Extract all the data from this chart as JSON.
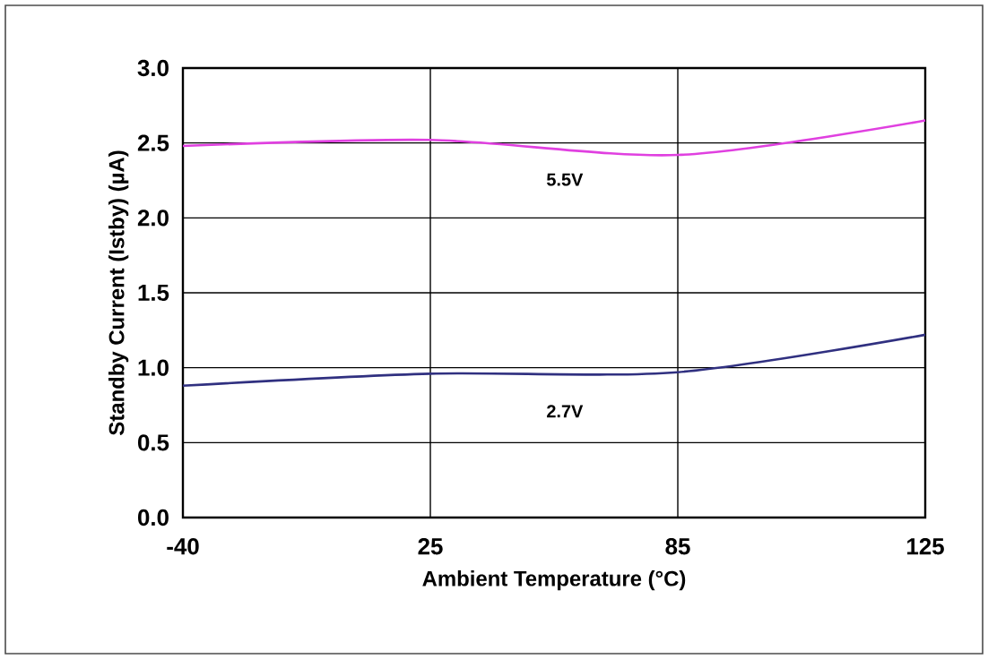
{
  "chart_data": {
    "type": "line",
    "xlabel": "Ambient Temperature (°C)",
    "ylabel": "Standby Current (Istby) (µA)",
    "categories": [
      "-40",
      "25",
      "85",
      "125"
    ],
    "series": [
      {
        "name": "5.5V",
        "color": "#e040e0",
        "values": [
          2.48,
          2.52,
          2.42,
          2.65
        ]
      },
      {
        "name": "2.7V",
        "color": "#303080",
        "values": [
          0.88,
          0.96,
          0.97,
          1.22
        ]
      }
    ],
    "ylim": [
      0,
      3
    ],
    "yticks": [
      {
        "value": 0,
        "label": "0.0"
      },
      0.5,
      {
        "value": 1,
        "label": "1.0"
      },
      1.5,
      {
        "value": 2,
        "label": "2.0"
      },
      2.5,
      {
        "value": 3,
        "label": "3.0"
      }
    ],
    "grid": true,
    "legend": false,
    "marker": "none",
    "line_style": "solid"
  }
}
